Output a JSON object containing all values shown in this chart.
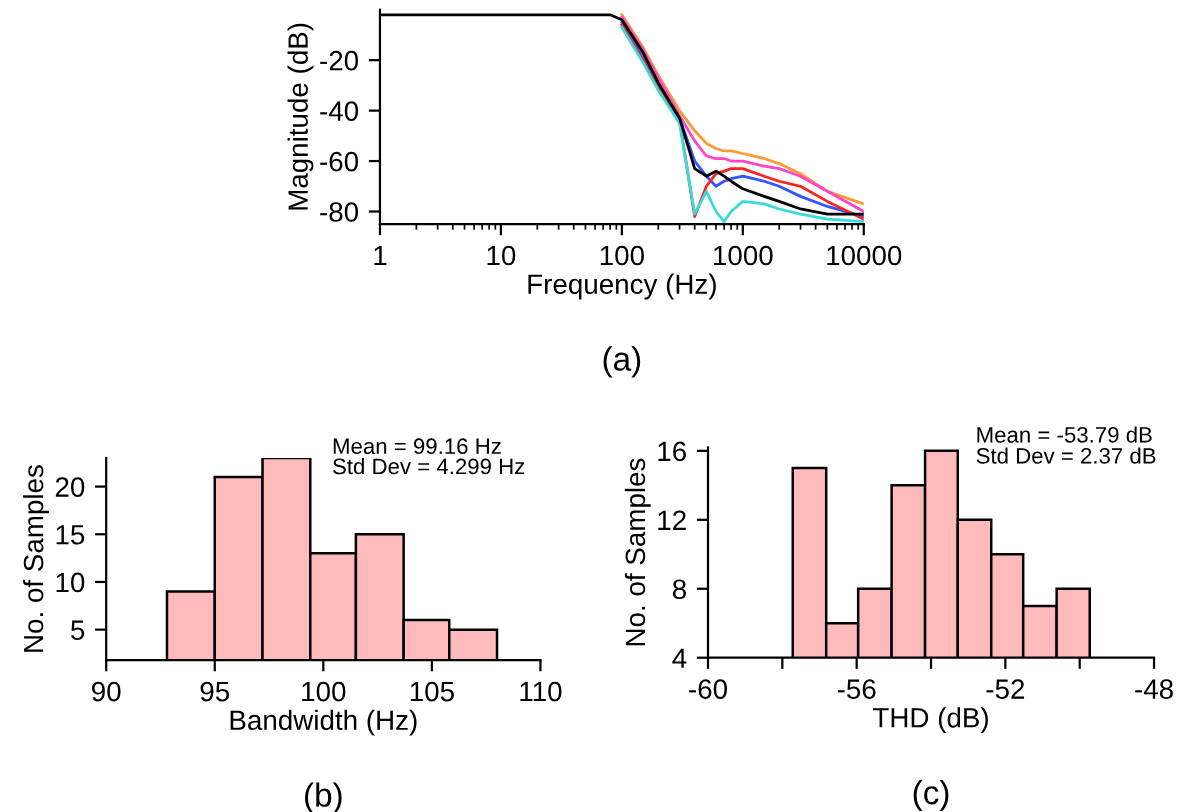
{
  "chart_data": [
    {
      "type": "line",
      "title": "(a)",
      "xlabel": "Frequency (Hz)",
      "ylabel": "Magnitude (dB)",
      "log": "x",
      "xlim": [
        1,
        10000
      ],
      "xticks": [
        1,
        10,
        100,
        1000,
        10000
      ],
      "ylim": [
        -85,
        0
      ],
      "yticks": [
        -20,
        -40,
        -60,
        -80
      ],
      "x": [
        1,
        10,
        50,
        80,
        100,
        150,
        200,
        300,
        400,
        500,
        600,
        700,
        800,
        1000,
        1500,
        2000,
        3000,
        5000,
        10000
      ],
      "series": [
        {
          "color": "#ff9933",
          "values": [
            null,
            null,
            null,
            null,
            -2,
            -15,
            -26,
            -40,
            -48,
            -53,
            -55,
            -56,
            -56,
            -57,
            -59,
            -61,
            -65,
            -72,
            -77
          ]
        },
        {
          "color": "#ff44cc",
          "values": [
            null,
            null,
            null,
            null,
            -3,
            -16,
            -27,
            -42,
            -52,
            -58,
            -59,
            -59,
            -60,
            -60,
            -62,
            -63,
            -66,
            -72,
            -80
          ]
        },
        {
          "color": "#3355ff",
          "values": [
            null,
            null,
            null,
            null,
            -5,
            -19,
            -30,
            -43,
            -60,
            -66,
            -70,
            -68,
            -67,
            -66,
            -68,
            -70,
            -74,
            -78,
            -82
          ]
        },
        {
          "color": "#ff2222",
          "values": [
            null,
            null,
            null,
            null,
            -6,
            -20,
            -31,
            -44,
            -82,
            -70,
            -65,
            -64,
            -63,
            -63,
            -66,
            -68,
            -70,
            -76,
            -83
          ]
        },
        {
          "color": "#33dddd",
          "values": [
            null,
            null,
            null,
            null,
            -7,
            -21,
            -32,
            -45,
            -81,
            -72,
            -80,
            -84,
            -80,
            -76,
            -77,
            -79,
            -81,
            -83,
            -84
          ]
        },
        {
          "color": "#000000",
          "values": [
            -2,
            -2,
            -2,
            -2,
            -4,
            -17,
            -29,
            -43,
            -63,
            -66,
            -64,
            -66,
            -68,
            -71,
            -74,
            -76,
            -79,
            -81,
            -81
          ]
        }
      ]
    },
    {
      "type": "histogram",
      "title": "(b)",
      "xlabel": "Bandwidth (Hz)",
      "ylabel": "No. of Samples",
      "xlim": [
        90,
        110
      ],
      "xticks": [
        90,
        95,
        100,
        105,
        110
      ],
      "ylim": [
        1.8,
        23
      ],
      "yticks": [
        5,
        10,
        15,
        20
      ],
      "bins": [
        92.8,
        95.0,
        97.2,
        99.4,
        101.5,
        103.7,
        105.8,
        108.0
      ],
      "values": [
        9,
        21,
        23,
        13,
        15,
        6,
        5
      ],
      "color": "#ffbbbb",
      "annotations": [
        "Mean = 99.16 Hz",
        "Std Dev = 4.299 Hz"
      ]
    },
    {
      "type": "histogram",
      "title": "(c)",
      "xlabel": "THD (dB)",
      "ylabel": "No. of Samples",
      "xlim": [
        -60,
        -48
      ],
      "xticks": [
        -60,
        {
          "value": -58,
          "label": null
        },
        -56,
        {
          "value": -54,
          "label": null
        },
        -52,
        {
          "value": -50,
          "label": null
        },
        -48
      ],
      "ylim": [
        4,
        16.2
      ],
      "yticks": [
        4,
        8,
        12,
        16
      ],
      "bins": [
        -57.72,
        -56.82,
        -55.96,
        -55.06,
        -54.16,
        -53.28,
        -52.38,
        -51.52,
        -50.62,
        -49.73
      ],
      "values": [
        15,
        6,
        8,
        14,
        16,
        12,
        10,
        7,
        8
      ],
      "color": "#ffbbbb",
      "annotations": [
        "Mean = -53.79 dB",
        "Std Dev = 2.37 dB"
      ]
    }
  ]
}
